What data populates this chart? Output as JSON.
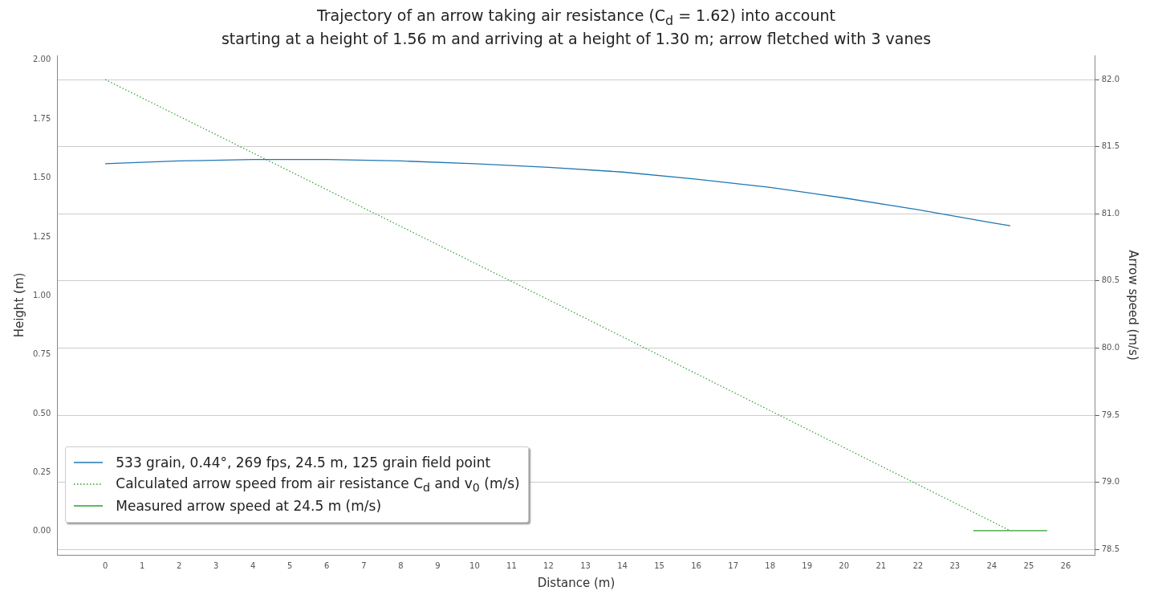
{
  "chart_data": {
    "type": "line",
    "title": "Trajectory of an arrow taking air resistance (C$_{d}$ = 1.62) into account",
    "subtitle": "starting at a height of 1.56 m and arriving at a height of 1.30 m; arrow fletched with 3 vanes",
    "xlabel": "Distance (m)",
    "ylabel": "Height (m)",
    "y2label": "Arrow speed (m/s)",
    "xlim": [
      -1.3,
      26.8
    ],
    "xticks": [
      0,
      1,
      2,
      3,
      4,
      5,
      6,
      7,
      8,
      9,
      10,
      11,
      12,
      13,
      14,
      15,
      16,
      17,
      18,
      19,
      20,
      21,
      22,
      23,
      24,
      25,
      26
    ],
    "ylim": [
      -0.1,
      2.02
    ],
    "yticks": [
      {
        "value": 0,
        "label": "0.00"
      },
      {
        "value": 0.25,
        "label": "0.25"
      },
      {
        "value": 0.5,
        "label": "0.50"
      },
      {
        "value": 0.75,
        "label": "0.75"
      },
      {
        "value": 1,
        "label": "1.00"
      },
      {
        "value": 1.25,
        "label": "1.25"
      },
      {
        "value": 1.5,
        "label": "1.50"
      },
      {
        "value": 1.75,
        "label": "1.75"
      },
      {
        "value": 2,
        "label": "2.00"
      }
    ],
    "y2lim": [
      78.46,
      82.18
    ],
    "y2ticks": [
      78.5,
      {
        "value": 79,
        "label": "79.0"
      },
      79.5,
      {
        "value": 80,
        "label": "80.0"
      },
      80.5,
      {
        "value": 81,
        "label": "81.0"
      },
      81.5,
      {
        "value": 82,
        "label": "82.0"
      }
    ],
    "grid": "y",
    "legend": "bottom left",
    "marker": "none",
    "series": [
      {
        "name": "533 grain, 0.44°, 269 fps, 24.5 m, 125 grain field point",
        "color": "#1f77b4",
        "line_style": "solid",
        "x": [
          0,
          2,
          4,
          6,
          8,
          10,
          12,
          14,
          16,
          18,
          20,
          22,
          24,
          24.5
        ],
        "values": [
          1.56,
          1.572,
          1.578,
          1.578,
          1.572,
          1.56,
          1.545,
          1.525,
          1.495,
          1.46,
          1.415,
          1.365,
          1.31,
          1.297
        ]
      },
      {
        "name": "Calculated arrow speed from air resistance C$_{d}$ and v$_{0}$ (m/s)",
        "color": "#2ca02c",
        "line_style": "dotted",
        "axis": "y2",
        "x": [
          0,
          12,
          24.5
        ],
        "values": [
          82.0,
          80.36,
          78.64
        ]
      },
      {
        "name": "Measured arrow speed at 24.5 m (m/s)",
        "color": "#2ca02c",
        "line_style": "solid",
        "axis": "y2",
        "x": [
          23.5,
          25.5
        ],
        "values": [
          78.64,
          78.64
        ]
      }
    ]
  }
}
